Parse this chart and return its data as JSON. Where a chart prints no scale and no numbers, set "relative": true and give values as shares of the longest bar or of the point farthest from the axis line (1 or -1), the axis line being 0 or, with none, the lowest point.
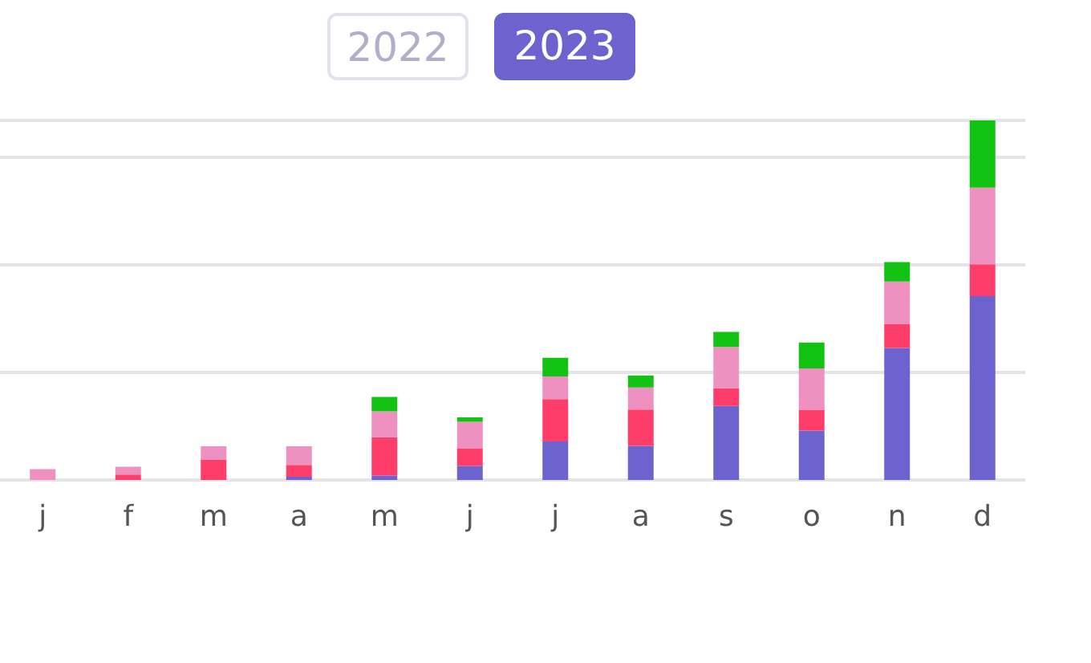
{
  "chart_data": {
    "type": "bar",
    "stacked": true,
    "relative": true,
    "grid": "y",
    "annotations": [
      "2022",
      "2023"
    ],
    "categories": [
      "j",
      "f",
      "m",
      "a",
      "m",
      "j",
      "j",
      "a",
      "s",
      "o",
      "n",
      "d"
    ],
    "series": [
      {
        "color": "#6c63cf",
        "values": [
          0,
          0,
          0,
          0.009,
          0.012,
          0.039,
          0.107,
          0.095,
          0.206,
          0.137,
          0.367,
          0.511
        ]
      },
      {
        "color": "#ff3d6a",
        "values": [
          0,
          0.015,
          0.057,
          0.033,
          0.107,
          0.048,
          0.118,
          0.101,
          0.049,
          0.057,
          0.066,
          0.089
        ]
      },
      {
        "color": "#ee90c0",
        "values": [
          0.03,
          0.022,
          0.037,
          0.052,
          0.072,
          0.075,
          0.063,
          0.061,
          0.115,
          0.116,
          0.119,
          0.213
        ]
      },
      {
        "color": "#13c313",
        "values": [
          0,
          0,
          0,
          0,
          0.04,
          0.012,
          0.052,
          0.034,
          0.042,
          0.072,
          0.054,
          0.187
        ]
      }
    ]
  }
}
